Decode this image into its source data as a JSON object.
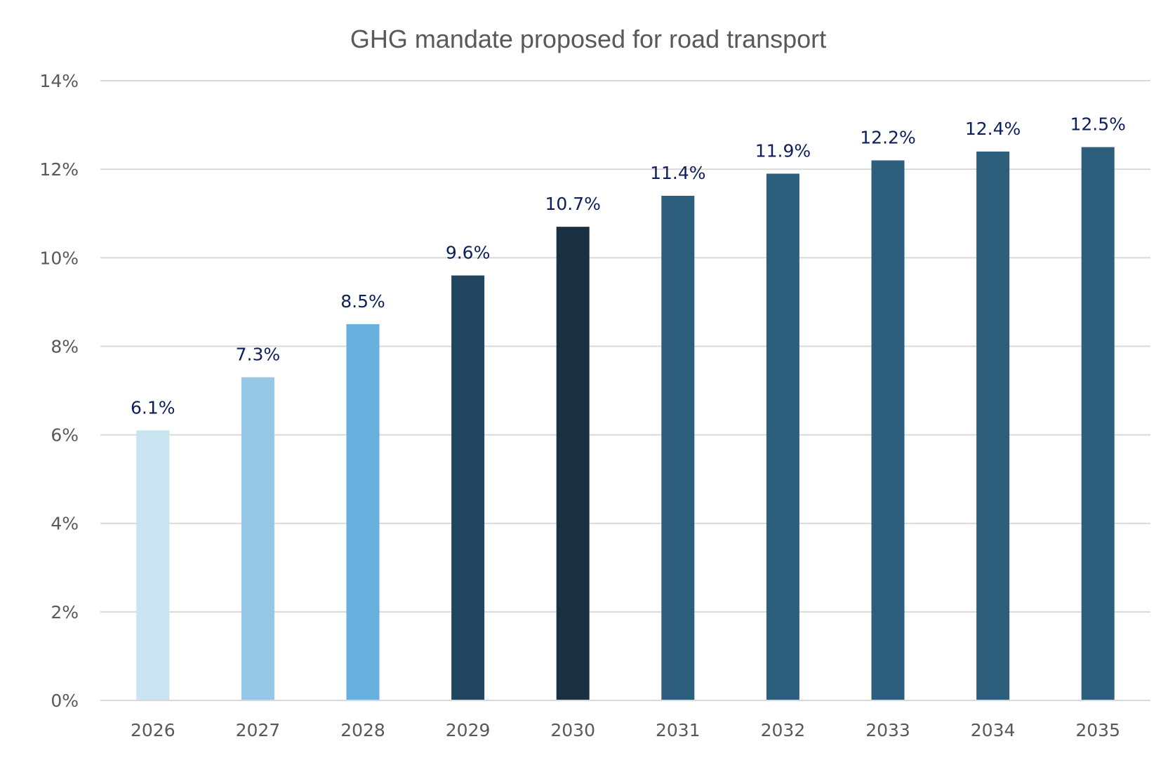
{
  "chart_data": {
    "type": "bar",
    "title": "GHG mandate proposed for road transport",
    "xlabel": "",
    "ylabel": "",
    "categories": [
      "2026",
      "2027",
      "2028",
      "2029",
      "2030",
      "2031",
      "2032",
      "2033",
      "2034",
      "2035"
    ],
    "values": [
      6.1,
      7.3,
      8.5,
      9.6,
      10.7,
      11.4,
      11.9,
      12.2,
      12.4,
      12.5
    ],
    "data_labels": [
      "6.1%",
      "7.3%",
      "8.5%",
      "9.6%",
      "10.7%",
      "11.4%",
      "11.9%",
      "12.2%",
      "12.4%",
      "12.5%"
    ],
    "bar_colors": [
      "#c9e3f1",
      "#96c8e6",
      "#67afdc",
      "#22465f",
      "#1a2f3f",
      "#2d5f7d",
      "#2d5f7d",
      "#2d5f7d",
      "#2d5f7d",
      "#2d5f7d"
    ],
    "ylim": [
      0,
      14
    ],
    "yticks": [
      0,
      2,
      4,
      6,
      8,
      10,
      12,
      14
    ],
    "ytick_labels": [
      "0%",
      "2%",
      "4%",
      "6%",
      "8%",
      "10%",
      "12%",
      "14%"
    ],
    "grid": true,
    "legend": "none",
    "colors": {
      "title_text": "#595959",
      "axis_text": "#595959",
      "data_label_text": "#0d1f5c",
      "gridline": "#d9d9d9"
    }
  }
}
